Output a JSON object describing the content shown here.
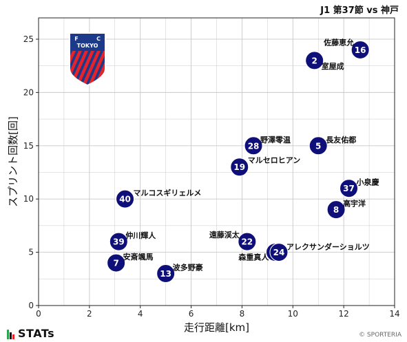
{
  "title": "J1 第37節 vs 神戸",
  "brand": "STATs",
  "copyright": "© SPORTERIA",
  "logo_text": {
    "top_left": "F",
    "top_right": "C",
    "middle": "TOKYO"
  },
  "colors": {
    "point_fill": "#0f0f7a",
    "point_text": "#ffffff",
    "grid": "#c8c8c8",
    "logo_blue": "#1d3a8a",
    "logo_red": "#e5232a"
  },
  "chart_data": {
    "type": "scatter",
    "xlabel": "走行距離[km]",
    "ylabel": "スプリント回数[回]",
    "xlim": [
      0,
      14
    ],
    "ylim": [
      0,
      27
    ],
    "xticks": [
      "0",
      "2",
      "4",
      "6",
      "8",
      "10",
      "12",
      "14"
    ],
    "yticks": [
      "0",
      "5",
      "10",
      "15",
      "20",
      "25"
    ],
    "grid": true,
    "points": [
      {
        "number": "16",
        "name": "佐藤恵允",
        "x": 12.65,
        "y": 24.0
      },
      {
        "number": "2",
        "name": "室屋成",
        "x": 10.85,
        "y": 23.0
      },
      {
        "number": "28",
        "name": "野澤零温",
        "x": 8.45,
        "y": 15.0
      },
      {
        "number": "5",
        "name": "長友佑都",
        "x": 11.0,
        "y": 15.0
      },
      {
        "number": "19",
        "name": "マルセロヒアン",
        "x": 7.9,
        "y": 13.0
      },
      {
        "number": "37",
        "name": "小泉慶",
        "x": 12.2,
        "y": 11.0
      },
      {
        "number": "8",
        "name": "高宇洋",
        "x": 11.7,
        "y": 9.0
      },
      {
        "number": "40",
        "name": "マルコスギリェルメ",
        "x": 3.4,
        "y": 10.0
      },
      {
        "number": "39",
        "name": "仲川輝人",
        "x": 3.15,
        "y": 6.0
      },
      {
        "number": "22",
        "name": "遠藤渓太",
        "x": 8.2,
        "y": 6.0
      },
      {
        "number": "3",
        "name": "森重真人",
        "x": 9.3,
        "y": 5.0
      },
      {
        "number": "24",
        "name": "アレクサンダーショルツ",
        "x": 9.45,
        "y": 5.0
      },
      {
        "number": "7",
        "name": "安斎颯馬",
        "x": 3.05,
        "y": 4.0
      },
      {
        "number": "13",
        "name": "波多野豪",
        "x": 5.0,
        "y": 3.0
      }
    ]
  }
}
